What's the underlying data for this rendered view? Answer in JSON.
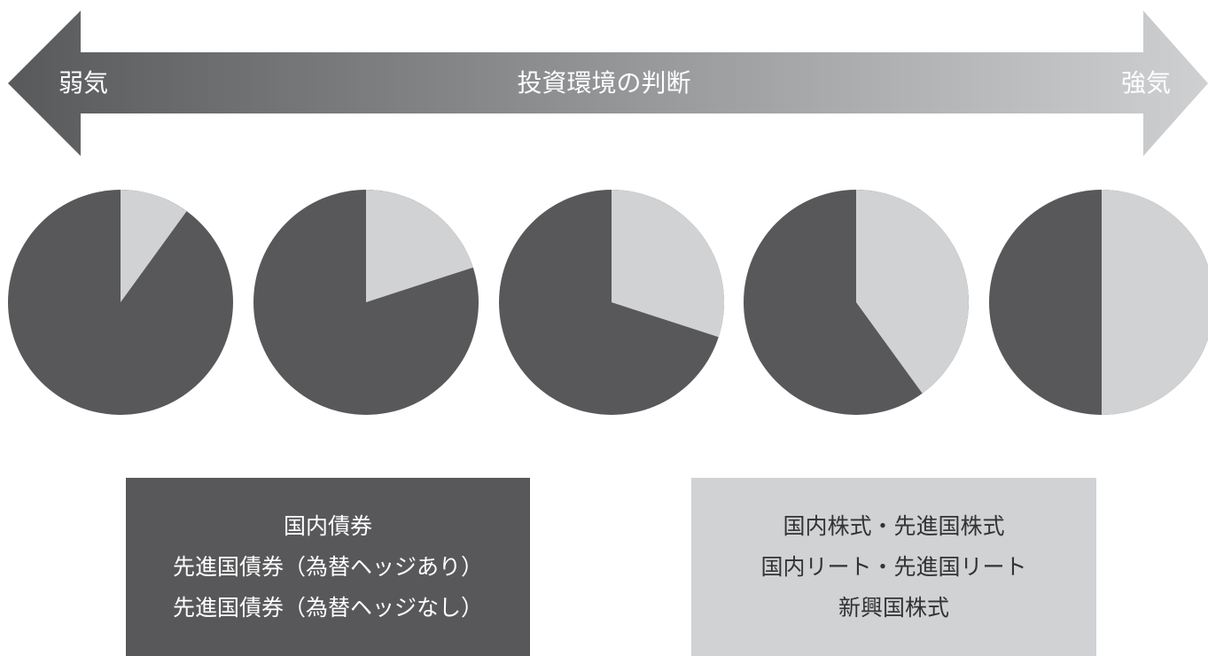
{
  "arrow": {
    "left_label": "弱気",
    "center_label": "投資環境の判断",
    "right_label": "強気",
    "gradient_start": "#58595b",
    "gradient_end": "#cfd0d2"
  },
  "pies": {
    "dark_color": "#58585a",
    "light_color": "#d1d2d4",
    "light_shares": [
      0.1,
      0.2,
      0.3,
      0.4,
      0.5
    ]
  },
  "legend_boxes": {
    "bonds": {
      "color": "#58585a",
      "lines": [
        "国内債券",
        "先進国債券（為替ヘッジあり）",
        "先進国債券（為替ヘッジなし）"
      ]
    },
    "equities": {
      "color": "#d1d2d4",
      "lines": [
        "国内株式・先進国株式",
        "国内リート・先進国リート",
        "新興国株式"
      ]
    }
  }
}
